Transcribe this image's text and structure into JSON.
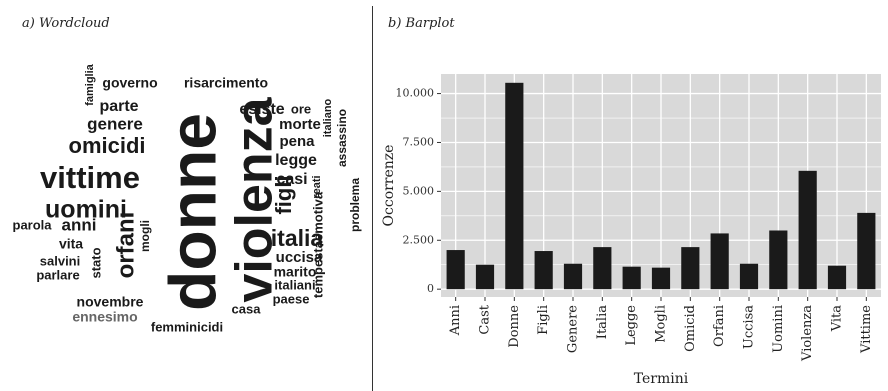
{
  "panel_a": {
    "title": "a) Wordcloud"
  },
  "panel_b": {
    "title": "b) Barplot"
  },
  "wordcloud": {
    "words": [
      "donne",
      "violenza",
      "vittime",
      "uomini",
      "omicidi",
      "italia",
      "orfani",
      "figli",
      "genere",
      "parte",
      "governo",
      "risarcimento",
      "famiglia",
      "esiste",
      "ore",
      "morte",
      "italiano",
      "assassino",
      "pena",
      "legge",
      "casi",
      "reati",
      "tempestaemotiva",
      "problema",
      "uccisa",
      "marito",
      "italiani",
      "paese",
      "casa",
      "femminicidi",
      "novembre",
      "ennesimo",
      "parlare",
      "salvini",
      "stato",
      "vita",
      "mogli",
      "anni",
      "parola"
    ],
    "colors": {
      "default": "#1a1a1a",
      "muted": "#666666"
    }
  },
  "chart_data": {
    "type": "bar",
    "categories": [
      "Anni",
      "Cast",
      "Donne",
      "Figli",
      "Genere",
      "Italia",
      "Legge",
      "Mogli",
      "Omicid",
      "Orfani",
      "Uccisa",
      "Uomini",
      "Violenza",
      "Vita",
      "Vittime"
    ],
    "values": [
      2000,
      1250,
      10550,
      1950,
      1300,
      2150,
      1150,
      1100,
      2150,
      2850,
      1300,
      3000,
      6050,
      1200,
      3900
    ],
    "xlabel": "Termini",
    "ylabel": "Occorrenze",
    "ylim": [
      -400,
      11000
    ],
    "yticks": [
      0,
      2500,
      5000,
      7500,
      10000
    ],
    "ytick_labels": [
      "0",
      "2.500",
      "5.000",
      "7.500",
      "10.000"
    ],
    "grid": true,
    "colors": {
      "panel": "#d9d9d9",
      "grid": "#ffffff",
      "bar": "#1a1a1a"
    }
  }
}
